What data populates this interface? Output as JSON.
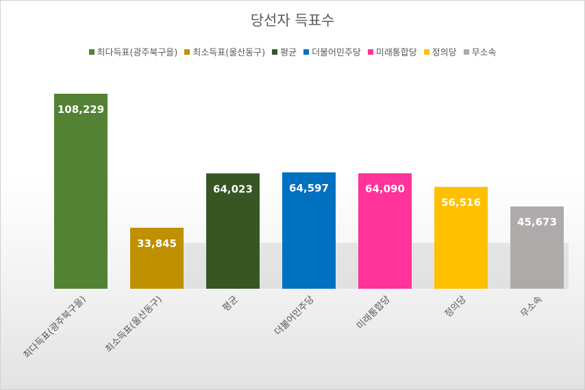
{
  "chart_data": {
    "type": "bar",
    "title": "당선자 득표수",
    "xlabel": "",
    "ylabel": "",
    "ylim": [
      0,
      120000
    ],
    "grid": false,
    "legend_position": "top",
    "categories": [
      "최다득표(광주북구을)",
      "최소득표(울산동구)",
      "평균",
      "더불어민주당",
      "미래통합당",
      "정의당",
      "무소속"
    ],
    "values": [
      108229,
      33845,
      64023,
      64597,
      64090,
      56516,
      45673
    ],
    "value_labels": [
      "108,229",
      "33,845",
      "64,023",
      "64,597",
      "64,090",
      "56,516",
      "45,673"
    ],
    "colors": [
      "#548235",
      "#BF9000",
      "#375623",
      "#0070C0",
      "#FF3399",
      "#FFC000",
      "#AEAAAA"
    ]
  }
}
